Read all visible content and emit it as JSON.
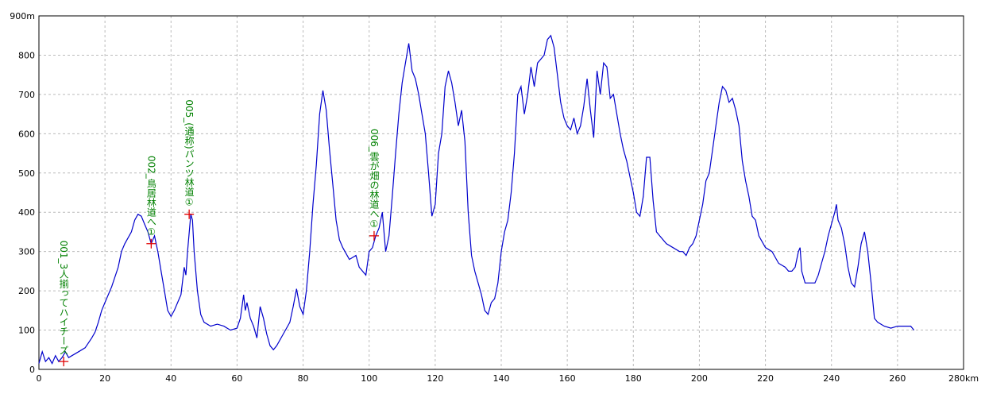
{
  "chart_data": {
    "type": "line",
    "color": "#0000cc",
    "grid": true,
    "xlim": [
      0,
      280
    ],
    "ylim": [
      0,
      900
    ],
    "xticks": [
      0,
      20,
      40,
      60,
      80,
      100,
      120,
      140,
      160,
      180,
      200,
      220,
      240,
      260,
      {
        "value": 280,
        "label": "280km"
      }
    ],
    "yticks": [
      0,
      100,
      200,
      300,
      400,
      500,
      600,
      700,
      800,
      {
        "value": 900,
        "label": "900m"
      }
    ],
    "x": [
      0,
      1,
      2,
      3,
      4,
      5,
      6,
      7,
      8,
      9,
      10,
      12,
      14,
      16,
      17,
      18,
      19,
      20,
      22,
      24,
      25,
      26,
      28,
      29,
      30,
      31,
      32,
      33,
      34,
      35,
      36,
      37,
      38,
      39,
      40,
      41,
      42,
      43,
      44,
      44.5,
      45,
      46,
      46.5,
      47,
      48,
      49,
      50,
      52,
      54,
      56,
      58,
      60,
      61,
      62,
      62.5,
      63,
      64,
      65,
      66,
      67,
      68,
      69,
      70,
      71,
      72,
      74,
      76,
      77,
      78,
      79,
      80,
      81,
      82,
      83,
      84,
      85,
      86,
      87,
      88,
      89,
      90,
      91,
      92,
      94,
      96,
      97,
      99,
      100,
      101,
      102,
      103,
      104,
      105,
      106,
      107,
      108,
      109,
      110,
      111,
      112,
      113,
      114,
      115,
      116,
      117,
      118,
      119,
      120,
      121,
      122,
      123,
      124,
      125,
      126,
      127,
      128,
      129,
      130,
      131,
      132,
      133,
      134,
      135,
      136,
      137,
      138,
      139,
      140,
      141,
      142,
      143,
      144,
      145,
      146,
      147,
      148,
      149,
      150,
      151,
      152,
      153,
      154,
      155,
      156,
      157,
      158,
      159,
      160,
      161,
      162,
      163,
      164,
      165,
      166,
      167,
      168,
      169,
      170,
      171,
      172,
      173,
      174,
      175,
      176,
      177,
      178,
      179,
      180,
      181,
      182,
      183,
      184,
      185,
      186,
      187,
      188,
      190,
      192,
      194,
      195,
      196,
      197,
      198,
      199,
      200,
      201,
      202,
      203,
      204,
      205,
      206,
      207,
      208,
      209,
      210,
      211,
      212,
      213,
      214,
      215,
      216,
      217,
      218,
      220,
      222,
      224,
      226,
      227,
      228,
      229,
      230,
      230.5,
      231,
      232,
      234,
      235,
      236,
      237,
      238,
      239,
      240,
      241,
      241.5,
      242,
      243,
      244,
      245,
      246,
      247,
      248,
      249,
      250,
      251,
      252,
      253,
      254,
      256,
      258,
      260,
      262,
      264,
      265
    ],
    "values": [
      15,
      45,
      20,
      30,
      15,
      35,
      20,
      30,
      45,
      30,
      35,
      45,
      55,
      80,
      95,
      120,
      150,
      170,
      210,
      260,
      300,
      320,
      350,
      380,
      395,
      390,
      370,
      350,
      320,
      340,
      300,
      250,
      200,
      150,
      135,
      150,
      170,
      190,
      260,
      240,
      300,
      395,
      380,
      300,
      200,
      140,
      120,
      110,
      115,
      110,
      100,
      105,
      130,
      190,
      150,
      170,
      130,
      110,
      80,
      160,
      130,
      90,
      60,
      50,
      60,
      90,
      120,
      160,
      205,
      160,
      140,
      200,
      300,
      420,
      520,
      650,
      710,
      660,
      560,
      470,
      380,
      330,
      310,
      280,
      290,
      260,
      240,
      300,
      310,
      340,
      360,
      400,
      300,
      340,
      440,
      550,
      650,
      730,
      780,
      830,
      760,
      740,
      700,
      650,
      600,
      500,
      390,
      420,
      550,
      600,
      720,
      760,
      730,
      680,
      620,
      660,
      580,
      400,
      290,
      250,
      220,
      190,
      150,
      140,
      170,
      180,
      220,
      300,
      350,
      380,
      450,
      550,
      700,
      720,
      650,
      700,
      770,
      720,
      780,
      790,
      800,
      840,
      850,
      820,
      750,
      680,
      640,
      620,
      610,
      640,
      600,
      620,
      670,
      740,
      660,
      590,
      760,
      700,
      780,
      770,
      690,
      700,
      650,
      600,
      560,
      530,
      490,
      450,
      400,
      390,
      440,
      540,
      540,
      430,
      350,
      340,
      320,
      310,
      300,
      300,
      290,
      310,
      320,
      340,
      380,
      420,
      480,
      500,
      560,
      620,
      680,
      720,
      710,
      680,
      690,
      660,
      620,
      530,
      480,
      440,
      390,
      380,
      340,
      310,
      300,
      270,
      260,
      250,
      250,
      260,
      300,
      310,
      250,
      220,
      220,
      220,
      240,
      270,
      300,
      340,
      370,
      400,
      420,
      380,
      360,
      320,
      260,
      220,
      210,
      260,
      320,
      350,
      300,
      220,
      130,
      120,
      110,
      105,
      110,
      110,
      110,
      100
    ],
    "annotations": [
      {
        "text": "001_3人揃ってハイチーズ",
        "x": 7.5,
        "y": 20
      },
      {
        "text": "002_鳥居林道へ①",
        "x": 34,
        "y": 320
      },
      {
        "text": "005_(通称)パンツ林道①",
        "x": 45.5,
        "y": 395
      },
      {
        "text": "006_雲が畑の林道へ①",
        "x": 101.5,
        "y": 340
      }
    ]
  }
}
